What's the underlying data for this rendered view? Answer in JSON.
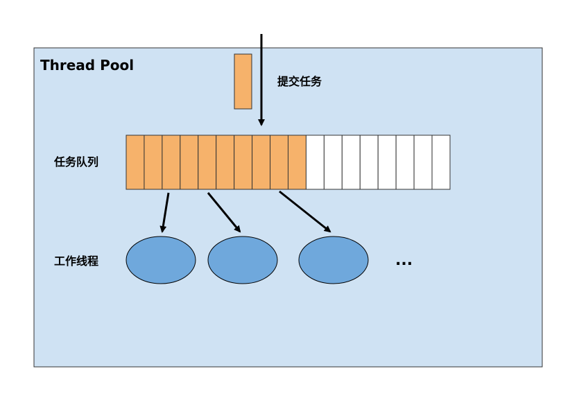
{
  "pool": {
    "title": "Thread Pool",
    "fill_color": "#cfe2f3"
  },
  "submit": {
    "label": "提交任务",
    "task_color": "#f6b26b"
  },
  "queue": {
    "label": "任务队列",
    "total_slots": 18,
    "filled_slots": 10,
    "filled_color": "#f6b26b",
    "empty_color": "#ffffff"
  },
  "workers": {
    "label": "工作线程",
    "count": 3,
    "color": "#6fa8dc",
    "more": "..."
  }
}
